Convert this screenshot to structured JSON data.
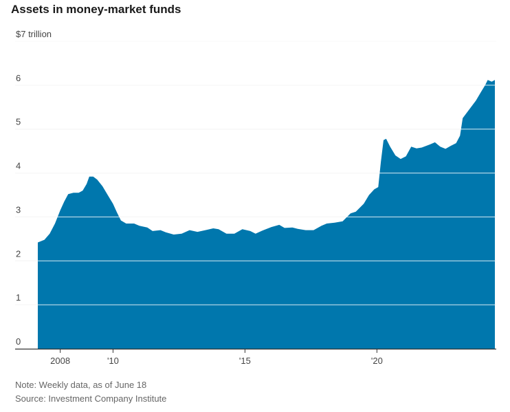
{
  "title": "Assets in money-market funds",
  "note": "Note: Weekly data, as of June 18",
  "source": "Source: Investment Company Institute",
  "colors": {
    "area": "#0077ad",
    "grid": "#d9d9d9",
    "axis": "#333333"
  },
  "chart_data": {
    "type": "area",
    "title": "Assets in money-market funds",
    "ylabel": "$7 trillion",
    "ylim": [
      0,
      7
    ],
    "xlim": [
      2007.15,
      2024.47
    ],
    "y_ticks": [
      {
        "value": 7,
        "label": "$7 trillion"
      },
      {
        "value": 6,
        "label": "6"
      },
      {
        "value": 5,
        "label": "5"
      },
      {
        "value": 4,
        "label": "4"
      },
      {
        "value": 3,
        "label": "3"
      },
      {
        "value": 2,
        "label": "2"
      },
      {
        "value": 1,
        "label": "1"
      },
      {
        "value": 0,
        "label": "0"
      }
    ],
    "x_ticks": [
      {
        "value": 2008,
        "label": "2008"
      },
      {
        "value": 2010,
        "label": "'10"
      },
      {
        "value": 2015,
        "label": "'15"
      },
      {
        "value": 2020,
        "label": "'20"
      }
    ],
    "series": [
      {
        "name": "Assets",
        "points": [
          [
            2007.15,
            2.42
          ],
          [
            2007.4,
            2.48
          ],
          [
            2007.6,
            2.62
          ],
          [
            2007.8,
            2.85
          ],
          [
            2008.0,
            3.15
          ],
          [
            2008.15,
            3.35
          ],
          [
            2008.3,
            3.52
          ],
          [
            2008.5,
            3.55
          ],
          [
            2008.7,
            3.55
          ],
          [
            2008.85,
            3.6
          ],
          [
            2009.0,
            3.75
          ],
          [
            2009.1,
            3.92
          ],
          [
            2009.25,
            3.92
          ],
          [
            2009.4,
            3.85
          ],
          [
            2009.6,
            3.7
          ],
          [
            2009.8,
            3.5
          ],
          [
            2010.0,
            3.3
          ],
          [
            2010.15,
            3.1
          ],
          [
            2010.3,
            2.92
          ],
          [
            2010.5,
            2.85
          ],
          [
            2010.8,
            2.85
          ],
          [
            2011.0,
            2.8
          ],
          [
            2011.3,
            2.76
          ],
          [
            2011.5,
            2.68
          ],
          [
            2011.8,
            2.7
          ],
          [
            2012.0,
            2.65
          ],
          [
            2012.3,
            2.6
          ],
          [
            2012.6,
            2.62
          ],
          [
            2012.9,
            2.7
          ],
          [
            2013.2,
            2.66
          ],
          [
            2013.5,
            2.7
          ],
          [
            2013.8,
            2.74
          ],
          [
            2014.0,
            2.72
          ],
          [
            2014.3,
            2.62
          ],
          [
            2014.6,
            2.62
          ],
          [
            2014.9,
            2.72
          ],
          [
            2015.2,
            2.68
          ],
          [
            2015.4,
            2.62
          ],
          [
            2015.7,
            2.7
          ],
          [
            2016.0,
            2.77
          ],
          [
            2016.3,
            2.82
          ],
          [
            2016.5,
            2.75
          ],
          [
            2016.8,
            2.76
          ],
          [
            2017.0,
            2.73
          ],
          [
            2017.3,
            2.7
          ],
          [
            2017.6,
            2.7
          ],
          [
            2017.9,
            2.8
          ],
          [
            2018.1,
            2.85
          ],
          [
            2018.4,
            2.87
          ],
          [
            2018.7,
            2.9
          ],
          [
            2019.0,
            3.08
          ],
          [
            2019.2,
            3.12
          ],
          [
            2019.5,
            3.3
          ],
          [
            2019.7,
            3.5
          ],
          [
            2019.9,
            3.63
          ],
          [
            2020.05,
            3.68
          ],
          [
            2020.15,
            4.25
          ],
          [
            2020.25,
            4.75
          ],
          [
            2020.35,
            4.78
          ],
          [
            2020.5,
            4.6
          ],
          [
            2020.7,
            4.4
          ],
          [
            2020.9,
            4.32
          ],
          [
            2021.1,
            4.38
          ],
          [
            2021.3,
            4.6
          ],
          [
            2021.5,
            4.56
          ],
          [
            2021.7,
            4.58
          ],
          [
            2022.0,
            4.65
          ],
          [
            2022.2,
            4.7
          ],
          [
            2022.4,
            4.6
          ],
          [
            2022.6,
            4.55
          ],
          [
            2022.8,
            4.62
          ],
          [
            2023.0,
            4.68
          ],
          [
            2023.15,
            4.85
          ],
          [
            2023.25,
            5.25
          ],
          [
            2023.5,
            5.45
          ],
          [
            2023.75,
            5.65
          ],
          [
            2023.95,
            5.85
          ],
          [
            2024.1,
            6.0
          ],
          [
            2024.2,
            6.12
          ],
          [
            2024.35,
            6.08
          ],
          [
            2024.47,
            6.12
          ]
        ]
      }
    ]
  }
}
